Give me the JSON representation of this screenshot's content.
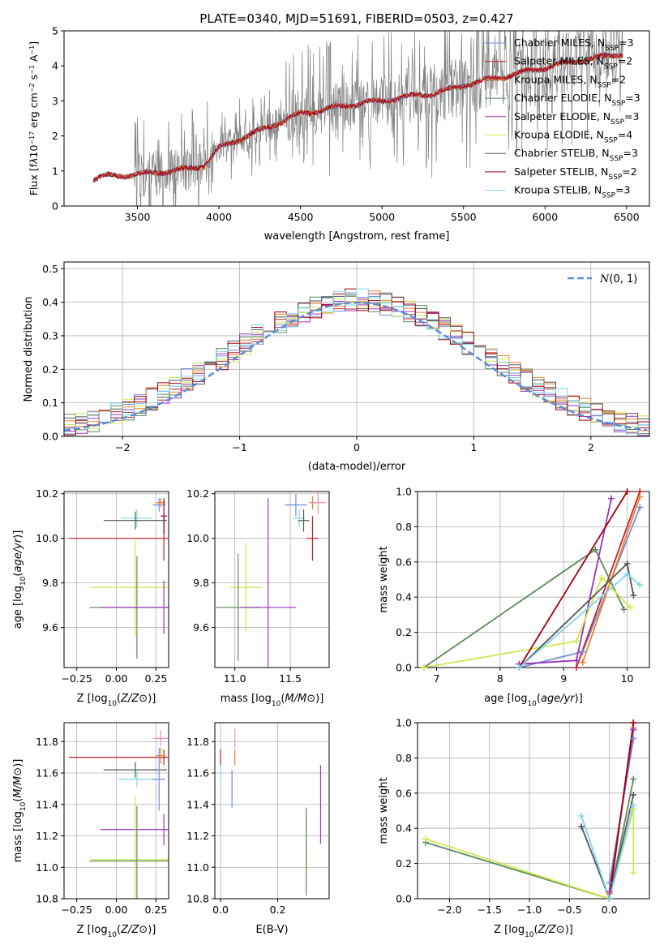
{
  "figure_title": "PLATE=0340, MJD=51691, FIBERID=0503, z=0.427",
  "colors": {
    "chabrier_miles": "#6f8fdc",
    "salpeter_miles": "#c0202a",
    "kroupa_miles": "#f07f2a",
    "chabrier_elodie": "#5c8a5c",
    "salpeter_elodie": "#9a33c0",
    "kroupa_elodie": "#cfe84f",
    "chabrier_stelib": "#555555",
    "salpeter_stelib": "#a00010",
    "kroupa_stelib": "#7fd7e8",
    "data": "#808080",
    "pink": "#f08fb8"
  },
  "chart_data": [
    {
      "id": "spectrum",
      "type": "line",
      "xlabel": "wavelength [Angstrom, rest frame]",
      "ylabel_html": "Flux [f<tspan font-style='italic'>λ</tspan>10<tspan baseline-shift='super' font-size='8'>−17</tspan> erg cm<tspan baseline-shift='super' font-size='8'>−2</tspan> s<tspan baseline-shift='super' font-size='8'>−1</tspan> A<tspan baseline-shift='super' font-size='8'>−1</tspan>]",
      "xlim": [
        3050,
        6640
      ],
      "ylim": [
        0,
        5
      ],
      "xticks": [
        3500,
        4000,
        4500,
        5000,
        5500,
        6000,
        6500
      ],
      "yticks": [
        0,
        1,
        2,
        3,
        4,
        5
      ],
      "legend": [
        {
          "name": "Chabrier MILES, N",
          "sub": "SSP",
          "val": "=3",
          "color": "chabrier_miles"
        },
        {
          "name": "Salpeter MILES, N",
          "sub": "SSP",
          "val": "=2",
          "color": "salpeter_miles"
        },
        {
          "name": "Kroupa MILES, N",
          "sub": "SSP",
          "val": "=2",
          "color": "kroupa_miles"
        },
        {
          "name": "Chabrier ELODIE, N",
          "sub": "SSP",
          "val": "=3",
          "color": "chabrier_elodie"
        },
        {
          "name": "Salpeter ELODIE, N",
          "sub": "SSP",
          "val": "=3",
          "color": "salpeter_elodie"
        },
        {
          "name": "Kroupa ELODIE, N",
          "sub": "SSP",
          "val": "=4",
          "color": "kroupa_elodie"
        },
        {
          "name": "Chabrier STELIB, N",
          "sub": "SSP",
          "val": "=3",
          "color": "chabrier_stelib"
        },
        {
          "name": "Salpeter STELIB, N",
          "sub": "SSP",
          "val": "=2",
          "color": "salpeter_stelib"
        },
        {
          "name": "Kroupa STELIB, N",
          "sub": "SSP",
          "val": "=3",
          "color": "kroupa_stelib"
        }
      ],
      "model_continuum": {
        "x": [
          3230,
          3260,
          3300,
          3400,
          3500,
          3600,
          3700,
          3800,
          3900,
          3950,
          4000,
          4100,
          4200,
          4300,
          4400,
          4500,
          4600,
          4700,
          4800,
          4900,
          5000,
          5100,
          5200,
          5300,
          5400,
          5500,
          5600,
          5700,
          5800,
          5900,
          6000,
          6100,
          6200,
          6300,
          6400,
          6480
        ],
        "y": [
          0.75,
          0.8,
          0.85,
          0.87,
          0.9,
          0.95,
          1.0,
          1.05,
          1.15,
          1.35,
          1.65,
          1.85,
          2.05,
          2.25,
          2.45,
          2.62,
          2.72,
          2.8,
          2.88,
          2.95,
          3.0,
          3.08,
          3.15,
          3.2,
          3.3,
          3.45,
          3.55,
          3.65,
          3.75,
          3.85,
          3.95,
          4.05,
          4.15,
          4.2,
          4.3,
          4.35
        ]
      }
    },
    {
      "id": "residuals",
      "type": "line",
      "xlabel": "(data-model)/error",
      "ylabel": "Normed distribution",
      "xlim": [
        -2.5,
        2.5
      ],
      "ylim": [
        0,
        0.52
      ],
      "xticks": [
        -2,
        -1,
        0,
        1,
        2
      ],
      "xtick_labels": [
        "−2",
        "−1",
        "0",
        "1",
        "2"
      ],
      "yticks": [
        0.0,
        0.1,
        0.2,
        0.3,
        0.4,
        0.5
      ],
      "ytick_labels": [
        "0.0",
        "0.1",
        "0.2",
        "0.3",
        "0.4",
        "0.5"
      ],
      "legend_label": "N(0, 1)",
      "bin_width": 0.1,
      "bin_start": -2.5
    },
    {
      "id": "age_vs_Z",
      "type": "scatter",
      "xlabel": "Z [log10(Z/Z⊙)]",
      "ylabel": "age [log10(age/yr)]",
      "xlim": [
        -0.33,
        0.33
      ],
      "ylim": [
        9.42,
        10.21
      ],
      "xticks": [
        -0.25,
        0.0,
        0.25
      ],
      "xtick_labels": [
        "−0.25",
        "0.00",
        "0.25"
      ],
      "yticks": [
        9.6,
        9.8,
        10.0,
        10.2
      ],
      "ytick_labels": [
        "9.6",
        "9.8",
        "10.0",
        "10.2"
      ]
    },
    {
      "id": "age_vs_mass",
      "type": "scatter",
      "xlabel": "mass [log10(M/M⊙)]",
      "xlim": [
        10.82,
        11.85
      ],
      "ylim": [
        9.42,
        10.21
      ],
      "xticks": [
        11.0,
        11.5
      ],
      "xtick_labels": [
        "11.0",
        "11.5"
      ],
      "yticks": [
        9.6,
        9.8,
        10.0,
        10.2
      ],
      "ytick_labels": [
        "9.6",
        "9.8",
        "10.0",
        "10.2"
      ]
    },
    {
      "id": "weight_vs_age",
      "type": "line",
      "xlabel": "age [log10(age/yr)]",
      "ylabel": "mass weight",
      "xlim": [
        6.7,
        10.35
      ],
      "ylim": [
        0,
        1
      ],
      "xticks": [
        7,
        8,
        9,
        10
      ],
      "xtick_labels": [
        "7",
        "8",
        "9",
        "10"
      ],
      "yticks": [
        0,
        0.2,
        0.4,
        0.6,
        0.8,
        1.0
      ],
      "ytick_labels": [
        "0.0",
        "0.2",
        "0.4",
        "0.6",
        "0.8",
        "1.0"
      ],
      "series": [
        {
          "color": "chabrier_miles",
          "x": [
            8.3,
            9.3,
            10.2
          ],
          "y": [
            0.0,
            0.09,
            0.91
          ]
        },
        {
          "color": "salpeter_miles",
          "x": [
            9.2,
            10.2
          ],
          "y": [
            0.0,
            1.0
          ]
        },
        {
          "color": "kroupa_miles",
          "x": [
            9.3,
            10.2
          ],
          "y": [
            0.03,
            0.97
          ]
        },
        {
          "color": "chabrier_elodie",
          "x": [
            6.8,
            9.5,
            9.95
          ],
          "y": [
            0.0,
            0.67,
            0.33
          ]
        },
        {
          "color": "salpeter_elodie",
          "x": [
            8.3,
            9.2,
            9.75
          ],
          "y": [
            0.02,
            0.04,
            0.96
          ]
        },
        {
          "color": "kroupa_elodie",
          "x": [
            6.8,
            9.2,
            9.6,
            10.05
          ],
          "y": [
            0.0,
            0.15,
            0.51,
            0.34
          ]
        },
        {
          "color": "chabrier_stelib",
          "x": [
            8.3,
            10.0,
            10.1
          ],
          "y": [
            0.0,
            0.59,
            0.41
          ]
        },
        {
          "color": "salpeter_stelib",
          "x": [
            8.3,
            10.0
          ],
          "y": [
            0.0,
            1.0
          ]
        },
        {
          "color": "kroupa_stelib",
          "x": [
            8.3,
            10.0,
            10.2
          ],
          "y": [
            0.0,
            0.53,
            0.47
          ]
        }
      ]
    },
    {
      "id": "mass_vs_Z",
      "type": "scatter",
      "xlabel": "Z [log10(Z/Z⊙)]",
      "ylabel": "mass [log10(M/M⊙)]",
      "xlim": [
        -0.33,
        0.33
      ],
      "ylim": [
        10.8,
        11.92
      ],
      "xticks": [
        -0.25,
        0.0,
        0.25
      ],
      "xtick_labels": [
        "−0.25",
        "0.00",
        "0.25"
      ],
      "yticks": [
        10.8,
        11.0,
        11.2,
        11.4,
        11.6,
        11.8
      ],
      "ytick_labels": [
        "10.8",
        "11.0",
        "11.2",
        "11.4",
        "11.6",
        "11.8"
      ]
    },
    {
      "id": "mass_vs_ebv",
      "type": "scatter",
      "xlabel": "E(B-V)",
      "xlim": [
        -0.02,
        0.38
      ],
      "ylim": [
        10.8,
        11.92
      ],
      "xticks": [
        0.0,
        0.2
      ],
      "xtick_labels": [
        "0.0",
        "0.2"
      ],
      "yticks": [
        10.8,
        11.0,
        11.2,
        11.4,
        11.6,
        11.8
      ],
      "ytick_labels": [
        "10.8",
        "11.0",
        "11.2",
        "11.4",
        "11.6",
        "11.8"
      ]
    },
    {
      "id": "weight_vs_Z",
      "type": "line",
      "xlabel": "Z [log10(Z/Z⊙)]",
      "ylabel": "mass weight",
      "xlim": [
        -2.4,
        0.5
      ],
      "ylim": [
        0,
        1
      ],
      "xticks": [
        -2.0,
        -1.5,
        -1.0,
        -0.5,
        0.0
      ],
      "xtick_labels": [
        "−2.0",
        "−1.5",
        "−1.0",
        "−0.5",
        "0.0"
      ],
      "yticks": [
        0,
        0.2,
        0.4,
        0.6,
        0.8,
        1.0
      ],
      "ytick_labels": [
        "0.0",
        "0.2",
        "0.4",
        "0.6",
        "0.8",
        "1.0"
      ],
      "series": [
        {
          "color": "chabrier_miles",
          "x": [
            0.0,
            0.3
          ],
          "y": [
            0.09,
            0.91
          ]
        },
        {
          "color": "salpeter_miles",
          "x": [
            0.0,
            0.3
          ],
          "y": [
            0.0,
            1.0
          ]
        },
        {
          "color": "kroupa_miles",
          "x": [
            0.0,
            0.3
          ],
          "y": [
            0.03,
            0.97
          ]
        },
        {
          "color": "chabrier_elodie",
          "x": [
            -2.3,
            0.0,
            0.3
          ],
          "y": [
            0.32,
            0.0,
            0.68
          ]
        },
        {
          "color": "salpeter_elodie",
          "x": [
            0.0,
            0.3
          ],
          "y": [
            0.04,
            0.96
          ]
        },
        {
          "color": "kroupa_elodie",
          "x": [
            -2.3,
            0.0,
            0.3,
            0.3
          ],
          "y": [
            0.34,
            0.0,
            0.51,
            0.15
          ]
        },
        {
          "color": "chabrier_stelib",
          "x": [
            -0.35,
            0.0,
            0.3
          ],
          "y": [
            0.41,
            0.0,
            0.59
          ]
        },
        {
          "color": "salpeter_stelib",
          "x": [
            0.0,
            0.3
          ],
          "y": [
            0.0,
            1.0
          ]
        },
        {
          "color": "kroupa_stelib",
          "x": [
            -0.35,
            0.0,
            0.3
          ],
          "y": [
            0.47,
            0.0,
            0.53
          ]
        }
      ]
    }
  ],
  "errorbars_age_Z": [
    {
      "color": "kroupa_stelib",
      "x": 0.13,
      "y": 10.09,
      "xerr": 0.1,
      "yerr": 0.04
    },
    {
      "color": "chabrier_stelib",
      "x": 0.12,
      "y": 10.08,
      "xerr": 0.2,
      "yerr": 0.04
    },
    {
      "color": "chabrier_miles",
      "x": 0.27,
      "y": 10.15,
      "xerr": 0.04,
      "yerr": 0.03
    },
    {
      "color": "kroupa_miles",
      "x": 0.28,
      "y": 10.16,
      "xerr": 0.03,
      "yerr": 0.02
    },
    {
      "color": "salpeter_miles",
      "x": 0.3,
      "y": 10.0,
      "xerr": 0.6,
      "yerr": 0.1
    },
    {
      "color": "salpeter_stelib",
      "x": 0.3,
      "y": 10.1,
      "xerr": 0.02,
      "yerr": 0.08
    },
    {
      "color": "kroupa_elodie",
      "x": 0.12,
      "y": 9.78,
      "xerr": 0.28,
      "yerr": 0.22
    },
    {
      "color": "chabrier_elodie",
      "x": 0.13,
      "y": 9.69,
      "xerr": 0.3,
      "yerr": 0.23
    },
    {
      "color": "salpeter_elodie",
      "x": 0.3,
      "y": 9.69,
      "xerr": 0.4,
      "yerr": 0.12
    }
  ],
  "errorbars_age_mass": [
    {
      "color": "kroupa_stelib",
      "x": 11.58,
      "y": 10.09,
      "xerr": 0.05,
      "yerr": 0.04
    },
    {
      "color": "chabrier_stelib",
      "x": 11.62,
      "y": 10.08,
      "xerr": 0.05,
      "yerr": 0.05
    },
    {
      "color": "chabrier_miles",
      "x": 11.55,
      "y": 10.15,
      "xerr": 0.1,
      "yerr": 0.05
    },
    {
      "color": "kroupa_miles",
      "x": 11.7,
      "y": 10.16,
      "xerr": 0.03,
      "yerr": 0.03
    },
    {
      "color": "pink",
      "x": 11.75,
      "y": 10.16,
      "xerr": 0.07,
      "yerr": 0.05
    },
    {
      "color": "salpeter_miles",
      "x": 11.7,
      "y": 10.0,
      "xerr": 0.05,
      "yerr": 0.1
    },
    {
      "color": "kroupa_elodie",
      "x": 11.1,
      "y": 9.78,
      "xerr": 0.15,
      "yerr": 0.2
    },
    {
      "color": "chabrier_elodie",
      "x": 11.03,
      "y": 9.69,
      "xerr": 0.2,
      "yerr": 0.24
    },
    {
      "color": "salpeter_elodie",
      "x": 11.3,
      "y": 9.69,
      "xerr": 0.25,
      "yerr": 0.49
    }
  ],
  "errorbars_mass_Z": [
    {
      "color": "pink",
      "x": 0.28,
      "y": 11.82,
      "xerr": 0.05,
      "yerr": 0.05
    },
    {
      "color": "salpeter_miles",
      "x": 0.3,
      "y": 11.7,
      "xerr": 0.6,
      "yerr": 0.05
    },
    {
      "color": "kroupa_miles",
      "x": 0.28,
      "y": 11.71,
      "xerr": 0.03,
      "yerr": 0.05
    },
    {
      "color": "chabrier_stelib",
      "x": 0.12,
      "y": 11.62,
      "xerr": 0.2,
      "yerr": 0.05
    },
    {
      "color": "kroupa_stelib",
      "x": 0.13,
      "y": 11.56,
      "xerr": 0.12,
      "yerr": 0.05
    },
    {
      "color": "chabrier_miles",
      "x": 0.27,
      "y": 11.56,
      "xerr": 0.04,
      "yerr": 0.2
    },
    {
      "color": "salpeter_elodie",
      "x": 0.3,
      "y": 11.24,
      "xerr": 0.4,
      "yerr": 0.1
    },
    {
      "color": "kroupa_elodie",
      "x": 0.12,
      "y": 11.05,
      "xerr": 0.28,
      "yerr": 0.4
    },
    {
      "color": "chabrier_elodie",
      "x": 0.13,
      "y": 11.04,
      "xerr": 0.3,
      "yerr": 0.35
    }
  ],
  "errorbars_mass_ebv": [
    {
      "color": "pink",
      "x": 0.05,
      "y": 11.82,
      "xerr": 0.0,
      "yerr": 0.06
    },
    {
      "color": "salpeter_miles",
      "x": 0.0,
      "y": 11.7,
      "xerr": 0.0,
      "yerr": 0.05
    },
    {
      "color": "kroupa_miles",
      "x": 0.05,
      "y": 11.7,
      "xerr": 0.0,
      "yerr": 0.05
    },
    {
      "color": "kroupa_stelib",
      "x": 0.0,
      "y": 11.6,
      "xerr": 0.0,
      "yerr": 0.05
    },
    {
      "color": "chabrier_miles",
      "x": 0.04,
      "y": 11.5,
      "xerr": 0.0,
      "yerr": 0.12
    },
    {
      "color": "salpeter_elodie",
      "x": 0.35,
      "y": 11.4,
      "xerr": 0.0,
      "yerr": 0.25
    },
    {
      "color": "kroupa_elodie",
      "x": 0.3,
      "y": 11.15,
      "xerr": 0.0,
      "yerr": 0.2
    },
    {
      "color": "chabrier_elodie",
      "x": 0.3,
      "y": 11.1,
      "xerr": 0.0,
      "yerr": 0.28
    }
  ]
}
